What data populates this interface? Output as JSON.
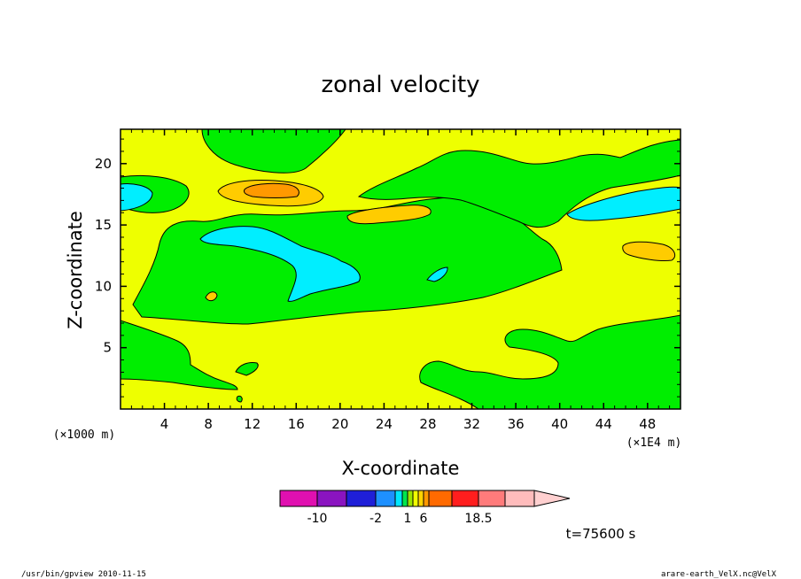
{
  "chart_data": {
    "type": "heatmap",
    "title": "zonal velocity",
    "xlabel": "X-coordinate",
    "ylabel": "Z-coordinate",
    "x_unit_label": "(×1E4 m)",
    "y_unit_label": "(×1000 m)",
    "xlim": [
      0,
      51
    ],
    "ylim": [
      0,
      22.8
    ],
    "x_ticks": [
      4,
      8,
      12,
      16,
      20,
      24,
      28,
      32,
      36,
      40,
      44,
      48
    ],
    "y_ticks": [
      5,
      10,
      15,
      20
    ],
    "x_tick_labels": [
      "4",
      "8",
      "12",
      "16",
      "20",
      "24",
      "28",
      "32",
      "36",
      "40",
      "44",
      "48"
    ],
    "y_tick_labels": [
      "5",
      "10",
      "15",
      "20"
    ],
    "time_label": "t=75600 s",
    "colorbar": {
      "levels": [
        -14,
        -10,
        -6,
        -2,
        -1,
        0,
        1,
        2,
        3,
        6,
        10,
        14,
        18.5
      ],
      "tick_labels": [
        "-10",
        "-2",
        "1",
        "6",
        "18.5"
      ],
      "tick_values": [
        -10,
        -2,
        1,
        6,
        18.5
      ],
      "colors": [
        "#e010b0",
        "#8a14c0",
        "#1f1fd8",
        "#1e90ff",
        "#00e6ff",
        "#00e64d",
        "#9be600",
        "#f0ff00",
        "#ffd400",
        "#ff9900",
        "#ff6a00",
        "#ff1e1e",
        "#ff7b7b",
        "#ffbcbc",
        "#ffd0d0"
      ]
    },
    "region_colors": {
      "cyan": "#00eeff",
      "green": "#00ee00",
      "yellow": "#eeff00",
      "gold": "#ffcc00",
      "orange": "#ff9900"
    }
  },
  "footer": {
    "left": "/usr/bin/gpview   2010-11-15",
    "right": "arare-earth_VelX.nc@VelX"
  }
}
